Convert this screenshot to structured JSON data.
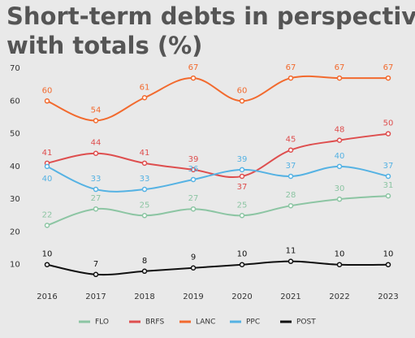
{
  "chart_data": {
    "type": "line",
    "title_lines": [
      "Short-term debts in perspective",
      "with totals (%)"
    ],
    "categories": [
      "2016",
      "2017",
      "2018",
      "2019",
      "2020",
      "2021",
      "2022",
      "2023"
    ],
    "ylim": [
      0,
      70
    ],
    "yticks": [
      10,
      20,
      30,
      40,
      50,
      60,
      70
    ],
    "series": [
      {
        "name": "FLO",
        "color": "#8cc5a3",
        "values": [
          22,
          27,
          25,
          27,
          25,
          28,
          30,
          31
        ]
      },
      {
        "name": "BRFS",
        "color": "#de4e4e",
        "values": [
          41,
          44,
          41,
          39,
          37,
          45,
          48,
          50
        ]
      },
      {
        "name": "LANC",
        "color": "#f26a2e",
        "values": [
          60,
          54,
          61,
          67,
          60,
          67,
          67,
          67
        ]
      },
      {
        "name": "PPC",
        "color": "#55b2e3",
        "values": [
          40,
          33,
          33,
          36,
          39,
          37,
          40,
          37
        ]
      },
      {
        "name": "POST",
        "color": "#111111",
        "values": [
          10,
          7,
          8,
          9,
          10,
          11,
          10,
          10
        ]
      }
    ]
  }
}
